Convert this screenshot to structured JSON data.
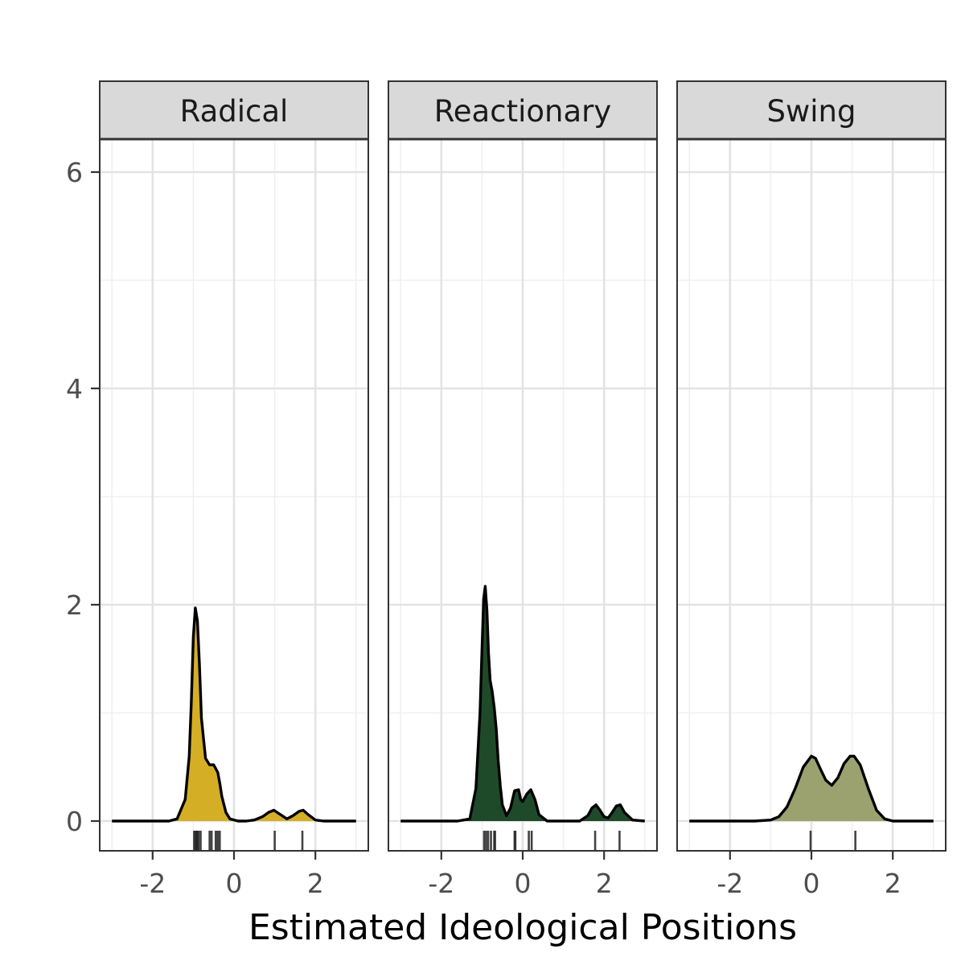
{
  "chart_data": {
    "type": "area",
    "subtype": "density-facets-with-rug",
    "title": "",
    "xlabel": "Estimated Ideological Positions",
    "ylabel": "",
    "xlim": [
      -3.0,
      3.0
    ],
    "ylim": [
      0,
      6.3
    ],
    "x_ticks": [
      -2,
      0,
      2
    ],
    "x_tick_labels": [
      "-2",
      "0",
      "2"
    ],
    "y_ticks": [
      0,
      2,
      4,
      6
    ],
    "y_tick_labels": [
      "0",
      "2",
      "4",
      "6"
    ],
    "grid": true,
    "legend": "none",
    "facets": [
      {
        "label": "Radical",
        "fill_color": "#D4AF25",
        "density": {
          "x": [
            -3.0,
            -1.6,
            -1.4,
            -1.2,
            -1.1,
            -1.05,
            -1.0,
            -0.95,
            -0.9,
            -0.85,
            -0.8,
            -0.7,
            -0.6,
            -0.5,
            -0.4,
            -0.35,
            -0.3,
            -0.2,
            -0.1,
            0.1,
            0.3,
            0.5,
            0.7,
            0.85,
            0.98,
            1.1,
            1.3,
            1.45,
            1.6,
            1.7,
            1.82,
            2.0,
            2.2,
            3.0
          ],
          "y": [
            0.0,
            0.0,
            0.02,
            0.2,
            0.6,
            1.1,
            1.7,
            1.97,
            1.85,
            1.45,
            0.95,
            0.58,
            0.52,
            0.52,
            0.45,
            0.35,
            0.23,
            0.08,
            0.02,
            0.0,
            0.0,
            0.01,
            0.04,
            0.08,
            0.1,
            0.07,
            0.02,
            0.05,
            0.09,
            0.1,
            0.06,
            0.01,
            0.0,
            0.0
          ]
        },
        "rug": [
          -0.98,
          -0.95,
          -0.92,
          -0.9,
          -0.87,
          -0.82,
          -0.6,
          -0.55,
          -0.45,
          -0.4,
          -0.35,
          1.0,
          1.68
        ]
      },
      {
        "label": "Reactionary",
        "fill_color": "#1F4A2A",
        "density": {
          "x": [
            -3.0,
            -1.6,
            -1.3,
            -1.15,
            -1.05,
            -1.0,
            -0.96,
            -0.92,
            -0.88,
            -0.84,
            -0.8,
            -0.75,
            -0.7,
            -0.65,
            -0.6,
            -0.55,
            -0.5,
            -0.4,
            -0.3,
            -0.2,
            -0.1,
            -0.05,
            0.0,
            0.1,
            0.2,
            0.3,
            0.4,
            0.6,
            1.0,
            1.4,
            1.6,
            1.7,
            1.8,
            1.9,
            2.0,
            2.1,
            2.2,
            2.3,
            2.4,
            2.5,
            2.7,
            3.0
          ],
          "y": [
            0.0,
            0.0,
            0.02,
            0.3,
            1.0,
            1.6,
            2.05,
            2.17,
            1.95,
            1.55,
            1.3,
            1.2,
            1.05,
            0.85,
            0.55,
            0.32,
            0.15,
            0.05,
            0.12,
            0.28,
            0.29,
            0.2,
            0.18,
            0.25,
            0.29,
            0.2,
            0.06,
            0.0,
            0.0,
            0.0,
            0.05,
            0.12,
            0.15,
            0.1,
            0.04,
            0.03,
            0.08,
            0.14,
            0.15,
            0.08,
            0.01,
            0.0
          ]
        },
        "rug": [
          -0.95,
          -0.9,
          -0.85,
          -0.78,
          -0.7,
          -0.68,
          -0.2,
          -0.18,
          0.15,
          0.22,
          1.78,
          2.38
        ]
      },
      {
        "label": "Swing",
        "fill_color": "#9BA26F",
        "density": {
          "x": [
            -3.0,
            -1.4,
            -1.0,
            -0.8,
            -0.6,
            -0.4,
            -0.2,
            0.0,
            0.1,
            0.2,
            0.35,
            0.5,
            0.65,
            0.8,
            0.95,
            1.05,
            1.2,
            1.4,
            1.6,
            1.8,
            2.0,
            2.4,
            3.0
          ],
          "y": [
            0.0,
            0.0,
            0.01,
            0.04,
            0.13,
            0.3,
            0.5,
            0.6,
            0.58,
            0.5,
            0.38,
            0.33,
            0.4,
            0.53,
            0.6,
            0.6,
            0.52,
            0.3,
            0.1,
            0.02,
            0.0,
            0.0,
            0.0
          ]
        },
        "rug": [
          -0.02,
          1.08
        ]
      }
    ]
  }
}
